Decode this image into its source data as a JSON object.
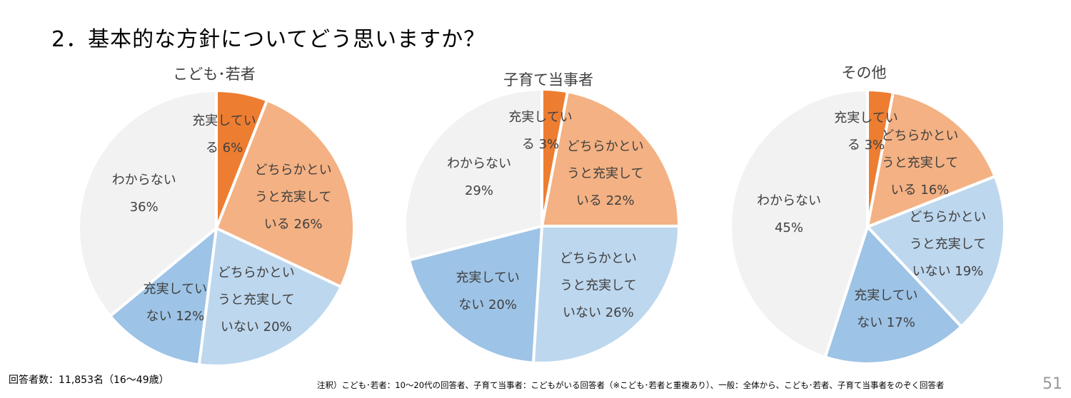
{
  "title": "2．基本的な方針についてどう思いますか？",
  "footer": {
    "respondents": "回答者数：11,853名（16～49歳）",
    "note": "注釈）こども･若者：10～20代の回答者、子育て当事者：こどもがいる回答者（※こども･若者と重複あり）、一般：全体から、こども･若者、子育て当事者をのぞく回答者",
    "page_number": "51"
  },
  "chart_data": [
    {
      "type": "pie",
      "title": "こども･若者",
      "categories": [
        "充実している",
        "どちらかというと充実している",
        "どちらかというと充実していない",
        "充実していない",
        "わからない"
      ],
      "values": [
        6,
        26,
        20,
        12,
        36
      ],
      "unit": "%",
      "colors": [
        "#ED7D31",
        "#F4B183",
        "#BDD7EE",
        "#9DC3E6",
        "#F2F2F2"
      ],
      "start": "12 o'clock, clockwise"
    },
    {
      "type": "pie",
      "title": "子育て当事者",
      "categories": [
        "充実している",
        "どちらかというと充実している",
        "どちらかというと充実していない",
        "充実していない",
        "わからない"
      ],
      "values": [
        3,
        22,
        26,
        20,
        29
      ],
      "unit": "%",
      "colors": [
        "#ED7D31",
        "#F4B183",
        "#BDD7EE",
        "#9DC3E6",
        "#F2F2F2"
      ],
      "start": "12 o'clock, clockwise"
    },
    {
      "type": "pie",
      "title": "その他",
      "categories": [
        "充実している",
        "どちらかというと充実している",
        "どちらかというと充実していない",
        "充実していない",
        "わからない"
      ],
      "values": [
        3,
        16,
        19,
        17,
        45
      ],
      "unit": "%",
      "colors": [
        "#ED7D31",
        "#F4B183",
        "#BDD7EE",
        "#9DC3E6",
        "#F2F2F2"
      ],
      "start": "12 o'clock, clockwise"
    }
  ]
}
